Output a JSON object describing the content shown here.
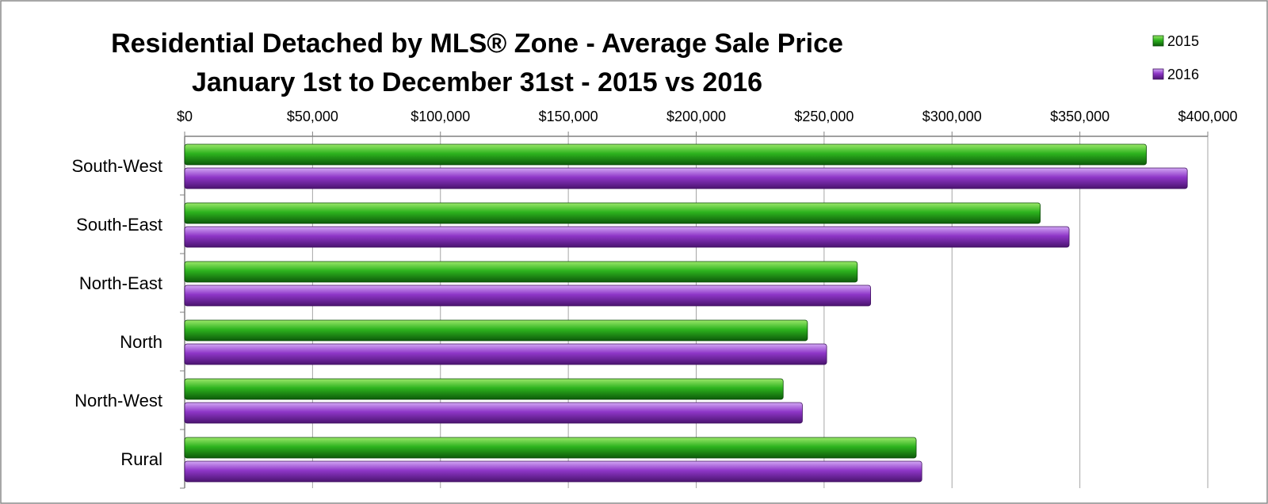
{
  "chart_data": {
    "type": "bar",
    "orientation": "horizontal",
    "title": "Residential Detached by MLS® Zone - Average Sale Price",
    "subtitle": "January 1st  to December 31st  - 2015 vs 2016",
    "categories": [
      "South-West",
      "South-East",
      "North-East",
      "North",
      "North-West",
      "Rural"
    ],
    "series": [
      {
        "name": "2015",
        "color": "#2db31e",
        "values": [
          376000,
          334500,
          263000,
          243500,
          234000,
          286000
        ]
      },
      {
        "name": "2016",
        "color": "#8e36c7",
        "values": [
          392000,
          345800,
          268200,
          251000,
          241500,
          288200
        ]
      }
    ],
    "x_ticks": [
      "$0",
      "$50,000",
      "$100,000",
      "$150,000",
      "$200,000",
      "$250,000",
      "$300,000",
      "$350,000",
      "$400,000"
    ],
    "xlim": [
      0,
      400000
    ],
    "xlabel": "",
    "ylabel": "",
    "x_axis_position": "top",
    "grid": true,
    "legend_position": "top-right"
  }
}
